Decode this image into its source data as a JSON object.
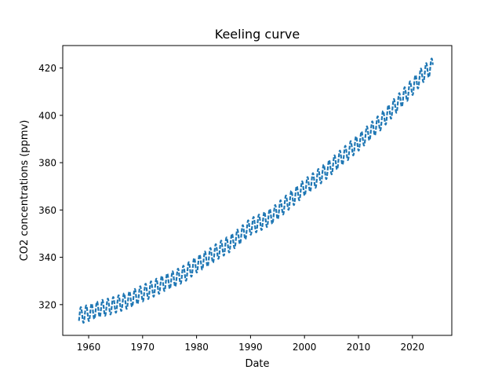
{
  "chart_data": {
    "type": "line",
    "title": "Keeling curve",
    "xlabel": "Date",
    "ylabel": "CO2 concentrations (ppmv)",
    "xlim": [
      1955.2,
      2027.3
    ],
    "ylim": [
      307.0,
      429.5
    ],
    "x_ticks": [
      1960,
      1970,
      1980,
      1990,
      2000,
      2010,
      2020
    ],
    "y_ticks": [
      320,
      340,
      360,
      380,
      400,
      420
    ],
    "grid": false,
    "legend": "none",
    "line_style": "dashed",
    "series": [
      {
        "x": [
          1958.2,
          1960,
          1962,
          1964,
          1966,
          1968,
          1970,
          1972,
          1974,
          1976,
          1978,
          1980,
          1982,
          1984,
          1986,
          1988,
          1990,
          1992,
          1994,
          1996,
          1998,
          2000,
          2002,
          2004,
          2006,
          2008,
          2010,
          2012,
          2014,
          2016,
          2018,
          2020,
          2022,
          2023.8
        ],
        "trend": [
          315.2,
          316.5,
          318.2,
          319.3,
          320.8,
          322.5,
          324.8,
          326.8,
          329.2,
          331.0,
          333.5,
          337.0,
          339.5,
          342.8,
          345.5,
          349.0,
          353.0,
          355.0,
          357.5,
          361.5,
          365.5,
          369.5,
          372.8,
          376.5,
          380.5,
          384.5,
          388.5,
          392.8,
          397.0,
          402.0,
          407.0,
          412.0,
          417.5,
          421.0
        ],
        "seasonal_amplitude": 3.5,
        "color": "#1f77b4"
      }
    ]
  }
}
